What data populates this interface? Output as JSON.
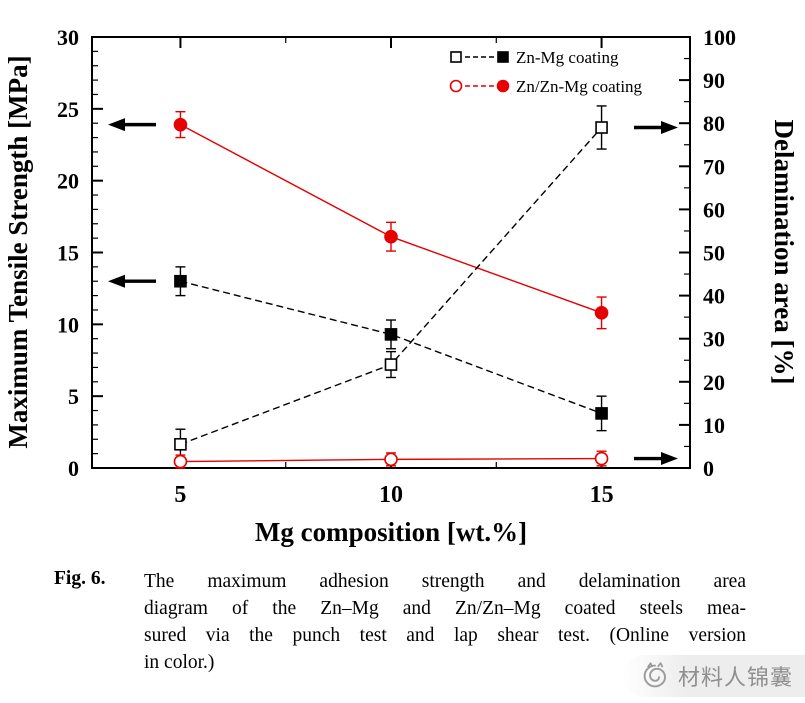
{
  "figure": {
    "label": "Fig. 6.",
    "caption_lines": [
      "The maximum adhesion strength and delamination area",
      "diagram of the Zn–Mg and Zn/Zn–Mg coated steels mea-",
      "sured via the punch test and lap shear test. (Online version",
      "in color.)"
    ]
  },
  "watermark": {
    "text": "材料人锦囊"
  },
  "chart_data": {
    "type": "line",
    "title": "",
    "xlabel": "Mg composition [wt.%]",
    "ylabel_left": "Maximum Tensile Strength [MPa]",
    "ylabel_right": "Delamination area [%]",
    "xlim": [
      2.9,
      17.1
    ],
    "ylim_left": [
      0,
      30
    ],
    "ylim_right": [
      0,
      100
    ],
    "x_ticks": [
      5,
      10,
      15
    ],
    "x_minor_ticks": [
      7.5,
      12.5
    ],
    "y_left_ticks": [
      0,
      5,
      10,
      15,
      20,
      25,
      30
    ],
    "y_left_minor_step": 1,
    "y_right_ticks": [
      0,
      10,
      20,
      30,
      40,
      50,
      60,
      70,
      80,
      90,
      100
    ],
    "y_right_minor_step": 5,
    "grid": false,
    "legend_position": "top-right-inside",
    "x": [
      5,
      10,
      15
    ],
    "series": [
      {
        "name": "Zn-Mg coating - maximum tensile strength",
        "legend": "Zn-Mg coating",
        "axis": "left",
        "color": "#000000",
        "marker": "square",
        "fill": "filled",
        "line": "dashed",
        "values": [
          13.0,
          9.3,
          3.8
        ],
        "errors": [
          1.0,
          1.0,
          1.2
        ]
      },
      {
        "name": "Zn/Zn-Mg coating - maximum tensile strength",
        "legend": "Zn/Zn-Mg coating",
        "axis": "left",
        "color": "#e60000",
        "marker": "circle",
        "fill": "filled",
        "line": "solid",
        "values": [
          23.9,
          16.1,
          10.8
        ],
        "errors": [
          0.9,
          1.0,
          1.1
        ]
      },
      {
        "name": "Zn-Mg coating - delamination area",
        "legend": "Zn-Mg coating",
        "axis": "right",
        "color": "#000000",
        "marker": "square",
        "fill": "open",
        "line": "dashed",
        "values": [
          5.5,
          24.0,
          79.0
        ],
        "errors": [
          3.5,
          3.0,
          5.0
        ]
      },
      {
        "name": "Zn/Zn-Mg coating - delamination area",
        "legend": "Zn/Zn-Mg coating",
        "axis": "right",
        "color": "#e60000",
        "marker": "circle",
        "fill": "open",
        "line": "solid",
        "values": [
          1.5,
          2.0,
          2.2
        ],
        "errors": [
          1.5,
          1.5,
          1.7
        ]
      }
    ],
    "legend": [
      {
        "label": "Zn-Mg coating",
        "color": "#000000",
        "marker": "square"
      },
      {
        "label": "Zn/Zn-Mg coating",
        "color": "#e60000",
        "marker": "circle"
      }
    ],
    "arrows": [
      {
        "side": "left",
        "axis": "left",
        "y": 23.9
      },
      {
        "side": "left",
        "axis": "left",
        "y": 13.0
      },
      {
        "side": "right",
        "axis": "right",
        "y": 79.0
      },
      {
        "side": "right",
        "axis": "right",
        "y": 2.2
      }
    ]
  }
}
